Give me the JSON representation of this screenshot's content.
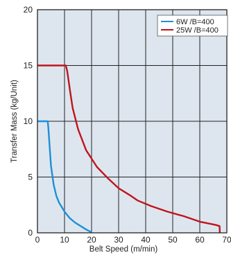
{
  "chart_data": {
    "type": "line",
    "xlabel": "Belt Speed (m/min)",
    "ylabel": "Transfer Mass (kg/Unit)",
    "xlim": [
      0,
      70
    ],
    "ylim": [
      0,
      20
    ],
    "x_ticks": [
      "0",
      "10",
      "20",
      "30",
      "40",
      "50",
      "60",
      "70"
    ],
    "y_ticks": [
      "0",
      "5",
      "10",
      "15",
      "20"
    ],
    "grid": true,
    "legend_position": "top-right",
    "background_color": "#dde6ef",
    "series": [
      {
        "name": "6W /B=400",
        "color": "#1e8fd6",
        "x": [
          0,
          3.8,
          4.0,
          5.0,
          6.0,
          7.0,
          8.0,
          10.0,
          12.0,
          14.0,
          16.0,
          18.0,
          20.0
        ],
        "y": [
          10,
          10,
          9.5,
          6.0,
          4.3,
          3.3,
          2.7,
          1.9,
          1.3,
          0.9,
          0.6,
          0.3,
          0.05
        ]
      },
      {
        "name": "25W /B=400",
        "color": "#c0141c",
        "x": [
          0,
          10.5,
          11.0,
          12.0,
          13.0,
          15.0,
          18.0,
          22.0,
          26.0,
          30.0,
          34.0,
          37.0,
          42.0,
          48.0,
          54.0,
          60.0,
          66.0,
          67.3,
          67.4
        ],
        "y": [
          15,
          15,
          14.5,
          12.8,
          11.2,
          9.3,
          7.4,
          5.9,
          4.9,
          4.0,
          3.4,
          2.9,
          2.4,
          1.9,
          1.5,
          1.0,
          0.7,
          0.6,
          0
        ]
      }
    ]
  }
}
